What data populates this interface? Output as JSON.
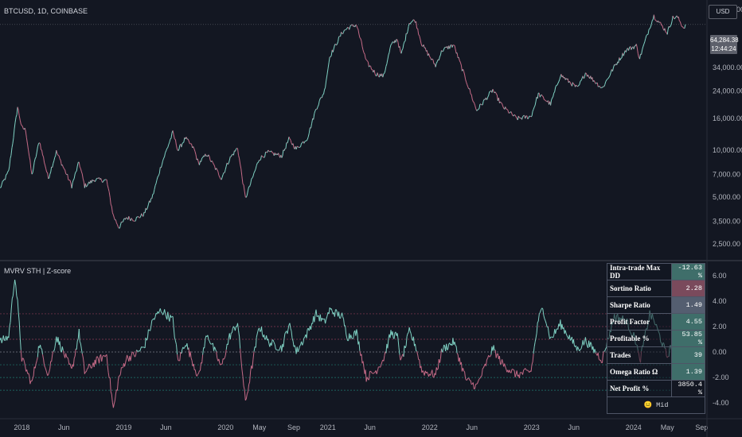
{
  "header": {
    "symbol": "BTCUSD, 1D, COINBASE",
    "currency_button": "USD"
  },
  "price_badge": {
    "price": "64,284.38",
    "countdown": "12:44:24"
  },
  "indicator": {
    "title": "MVRV STH | Z-score"
  },
  "colors": {
    "bull": "#26a69a",
    "bear": "#c2185b",
    "bull_line": "#7fd1c3",
    "bear_line": "#c46a86",
    "background": "#131722"
  },
  "x_axis": {
    "ticks": [
      "2018",
      "Jun",
      "2019",
      "Jun",
      "2020",
      "May",
      "Sep",
      "2021",
      "Jun",
      "2022",
      "Jun",
      "2023",
      "Jun",
      "2024",
      "May",
      "Sep"
    ]
  },
  "stats_table": {
    "rows": [
      {
        "label": "Intra-trade Max DD",
        "value": "-12.63 %",
        "bg": "#3f6e6a"
      },
      {
        "label": "Sortino Ratio",
        "value": "2.28",
        "bg": "#7a4a5c"
      },
      {
        "label": "Sharpe Ratio",
        "value": "1.49",
        "bg": "#545e70"
      },
      {
        "label": "Profit Factor",
        "value": "4.55",
        "bg": "#3f6e6a"
      },
      {
        "label": "Profitable %",
        "value": "53.85 %",
        "bg": "#3f6e6a"
      },
      {
        "label": "Trades",
        "value": "39",
        "bg": "#3f6e6a"
      },
      {
        "label": "Omega Ratio Ω",
        "value": "1.39",
        "bg": "#3f6e6a"
      },
      {
        "label": "Net Profit %",
        "value": "3850.4 %",
        "bg": "#131722"
      }
    ],
    "footer": "😐 Mid"
  },
  "chart_data": [
    {
      "type": "line",
      "x_range": [
        "2017-10-15",
        "2024-09-20"
      ],
      "log_scale": true,
      "ylim": [
        2100,
        84000
      ],
      "yticks": [
        {
          "value": 80000,
          "label": "80,000.00"
        },
        {
          "value": 34000,
          "label": "34,000.00"
        },
        {
          "value": 24000,
          "label": "24,000.00"
        },
        {
          "value": 16000,
          "label": "16,000.00"
        },
        {
          "value": 10000,
          "label": "10,000.00"
        },
        {
          "value": 7000,
          "label": "7,000.00"
        },
        {
          "value": 5000,
          "label": "5,000.00"
        },
        {
          "value": 3500,
          "label": "3,500.00"
        },
        {
          "value": 2500,
          "label": "2,500.00"
        }
      ],
      "last_price_line": 64284.38,
      "series": [
        {
          "values": [
            [
              "2017-10-15",
              5700
            ],
            [
              "2017-11-15",
              7300
            ],
            [
              "2017-12-17",
              19000
            ],
            [
              "2018-01-01",
              14000
            ],
            [
              "2018-01-15",
              13500
            ],
            [
              "2018-02-06",
              6900
            ],
            [
              "2018-03-05",
              11500
            ],
            [
              "2018-04-06",
              6600
            ],
            [
              "2018-05-05",
              9800
            ],
            [
              "2018-06-29",
              5900
            ],
            [
              "2018-07-25",
              8400
            ],
            [
              "2018-08-14",
              5900
            ],
            [
              "2018-09-20",
              6500
            ],
            [
              "2018-11-01",
              6400
            ],
            [
              "2018-11-25",
              3800
            ],
            [
              "2018-12-15",
              3200
            ],
            [
              "2019-01-10",
              3700
            ],
            [
              "2019-02-10",
              3600
            ],
            [
              "2019-03-15",
              3900
            ],
            [
              "2019-04-15",
              5100
            ],
            [
              "2019-05-15",
              8000
            ],
            [
              "2019-06-26",
              13000
            ],
            [
              "2019-07-15",
              10000
            ],
            [
              "2019-08-10",
              12000
            ],
            [
              "2019-09-10",
              10200
            ],
            [
              "2019-09-26",
              8200
            ],
            [
              "2019-10-26",
              9500
            ],
            [
              "2019-12-17",
              6600
            ],
            [
              "2020-01-15",
              8800
            ],
            [
              "2020-02-13",
              10400
            ],
            [
              "2020-03-12",
              4900
            ],
            [
              "2020-04-30",
              8800
            ],
            [
              "2020-06-01",
              9700
            ],
            [
              "2020-07-20",
              9200
            ],
            [
              "2020-08-15",
              11800
            ],
            [
              "2020-09-10",
              10200
            ],
            [
              "2020-10-20",
              12000
            ],
            [
              "2020-11-20",
              18500
            ],
            [
              "2020-12-20",
              24000
            ],
            [
              "2021-01-08",
              40000
            ],
            [
              "2021-02-21",
              57000
            ],
            [
              "2021-03-13",
              61000
            ],
            [
              "2021-04-14",
              64000
            ],
            [
              "2021-05-19",
              37000
            ],
            [
              "2021-06-22",
              31000
            ],
            [
              "2021-07-20",
              30000
            ],
            [
              "2021-08-15",
              47000
            ],
            [
              "2021-09-07",
              52000
            ],
            [
              "2021-09-21",
              41000
            ],
            [
              "2021-10-20",
              66000
            ],
            [
              "2021-11-10",
              68500
            ],
            [
              "2021-12-04",
              48000
            ],
            [
              "2022-01-22",
              35000
            ],
            [
              "2022-02-15",
              44000
            ],
            [
              "2022-03-28",
              47500
            ],
            [
              "2022-05-12",
              28000
            ],
            [
              "2022-06-18",
              18000
            ],
            [
              "2022-08-15",
              24400
            ],
            [
              "2022-09-20",
              19000
            ],
            [
              "2022-11-09",
              16000
            ],
            [
              "2022-12-30",
              16500
            ],
            [
              "2023-01-25",
              23000
            ],
            [
              "2023-03-10",
              19800
            ],
            [
              "2023-04-14",
              30500
            ],
            [
              "2023-06-15",
              25000
            ],
            [
              "2023-07-13",
              31500
            ],
            [
              "2023-09-11",
              25000
            ],
            [
              "2023-10-24",
              34500
            ],
            [
              "2023-12-05",
              44000
            ],
            [
              "2024-01-11",
              47000
            ],
            [
              "2024-01-23",
              39000
            ],
            [
              "2024-02-28",
              62000
            ],
            [
              "2024-03-14",
              73000
            ],
            [
              "2024-05-01",
              57000
            ],
            [
              "2024-05-21",
              71000
            ],
            [
              "2024-06-07",
              71500
            ],
            [
              "2024-06-28",
              61000
            ],
            [
              "2024-07-05",
              64284
            ]
          ]
        }
      ]
    },
    {
      "type": "line",
      "title": "MVRV STH | Z-score",
      "x_range": [
        "2017-10-15",
        "2024-09-20"
      ],
      "ylim": [
        -4.8,
        6.8
      ],
      "yticks": [
        {
          "value": 6,
          "label": "6.00"
        },
        {
          "value": 4,
          "label": "4.00"
        },
        {
          "value": 2,
          "label": "2.00"
        },
        {
          "value": 0,
          "label": "0.00"
        },
        {
          "value": -2,
          "label": "-2.00"
        },
        {
          "value": -4,
          "label": "-4.00"
        }
      ],
      "reference_lines": [
        3,
        2,
        1,
        0,
        -1,
        -2,
        -3
      ],
      "series": [
        {
          "values": [
            [
              "2017-10-15",
              0.8
            ],
            [
              "2017-11-15",
              1.2
            ],
            [
              "2017-12-07",
              6.0
            ],
            [
              "2017-12-17",
              3.8
            ],
            [
              "2018-01-01",
              -0.5
            ],
            [
              "2018-02-06",
              -2.5
            ],
            [
              "2018-03-05",
              0.6
            ],
            [
              "2018-04-06",
              -1.8
            ],
            [
              "2018-05-05",
              1.2
            ],
            [
              "2018-06-29",
              -1.5
            ],
            [
              "2018-07-25",
              1.5
            ],
            [
              "2018-08-14",
              -1.6
            ],
            [
              "2018-09-20",
              -0.8
            ],
            [
              "2018-11-01",
              -0.2
            ],
            [
              "2018-11-25",
              -4.5
            ],
            [
              "2018-12-15",
              -2.0
            ],
            [
              "2019-01-10",
              -0.5
            ],
            [
              "2019-02-10",
              -0.2
            ],
            [
              "2019-03-15",
              0.4
            ],
            [
              "2019-04-15",
              2.5
            ],
            [
              "2019-05-15",
              3.3
            ],
            [
              "2019-06-26",
              2.5
            ],
            [
              "2019-07-15",
              -0.8
            ],
            [
              "2019-08-10",
              0.8
            ],
            [
              "2019-09-26",
              -2.0
            ],
            [
              "2019-10-26",
              1.5
            ],
            [
              "2019-12-17",
              -1.2
            ],
            [
              "2020-01-15",
              1.2
            ],
            [
              "2020-02-13",
              2.3
            ],
            [
              "2020-03-12",
              -4.0
            ],
            [
              "2020-04-30",
              2.0
            ],
            [
              "2020-06-01",
              0.8
            ],
            [
              "2020-07-20",
              0.3
            ],
            [
              "2020-08-15",
              2.2
            ],
            [
              "2020-09-10",
              0.0
            ],
            [
              "2020-10-20",
              1.5
            ],
            [
              "2020-11-20",
              3.0
            ],
            [
              "2020-12-20",
              2.3
            ],
            [
              "2021-01-08",
              3.3
            ],
            [
              "2021-02-21",
              2.8
            ],
            [
              "2021-03-13",
              1.2
            ],
            [
              "2021-04-14",
              1.5
            ],
            [
              "2021-05-19",
              -2.0
            ],
            [
              "2021-06-22",
              -1.5
            ],
            [
              "2021-07-20",
              -0.5
            ],
            [
              "2021-08-15",
              1.5
            ],
            [
              "2021-09-07",
              1.2
            ],
            [
              "2021-09-21",
              -0.8
            ],
            [
              "2021-10-20",
              1.6
            ],
            [
              "2021-11-10",
              0.6
            ],
            [
              "2021-12-04",
              -1.5
            ],
            [
              "2022-01-22",
              -1.8
            ],
            [
              "2022-02-15",
              0.2
            ],
            [
              "2022-03-28",
              0.8
            ],
            [
              "2022-05-12",
              -2.2
            ],
            [
              "2022-06-18",
              -2.7
            ],
            [
              "2022-08-15",
              0.3
            ],
            [
              "2022-09-20",
              -1.0
            ],
            [
              "2022-11-09",
              -1.8
            ],
            [
              "2022-12-30",
              -1.5
            ],
            [
              "2023-01-25",
              2.5
            ],
            [
              "2023-02-10",
              3.5
            ],
            [
              "2023-03-10",
              1.0
            ],
            [
              "2023-04-14",
              2.2
            ],
            [
              "2023-06-15",
              0.2
            ],
            [
              "2023-07-13",
              0.9
            ],
            [
              "2023-09-11",
              -0.6
            ],
            [
              "2023-10-24",
              2.8
            ],
            [
              "2023-12-05",
              2.5
            ],
            [
              "2024-01-11",
              0.8
            ],
            [
              "2024-01-23",
              -0.8
            ],
            [
              "2024-02-28",
              3.0
            ],
            [
              "2024-03-14",
              2.5
            ],
            [
              "2024-05-01",
              -0.4
            ],
            [
              "2024-05-21",
              0.9
            ],
            [
              "2024-06-07",
              0.5
            ],
            [
              "2024-06-28",
              -0.8
            ],
            [
              "2024-07-05",
              0.2
            ]
          ]
        }
      ]
    }
  ]
}
